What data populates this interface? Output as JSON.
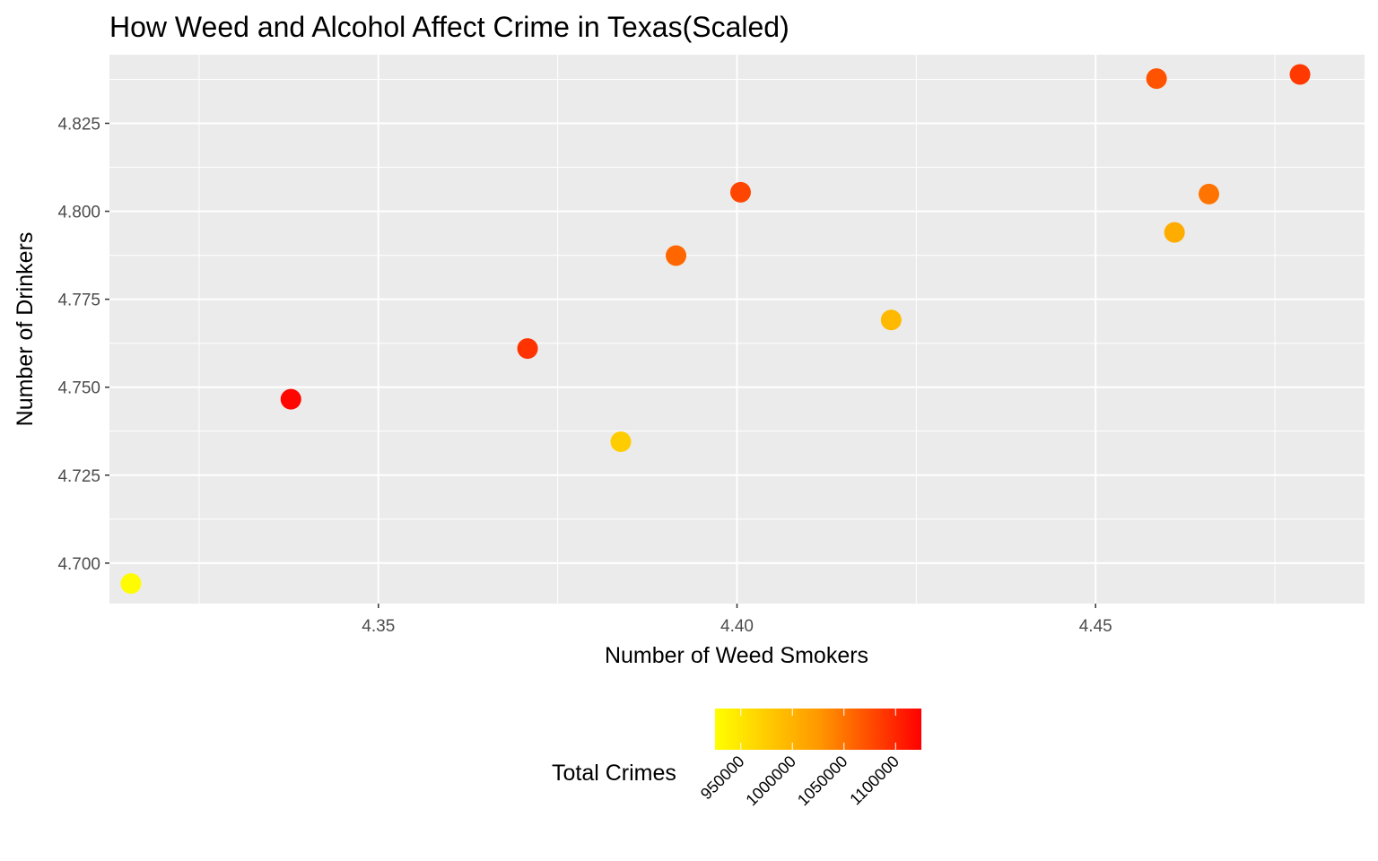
{
  "chart_data": {
    "type": "scatter",
    "title": "How Weed and Alcohol Affect Crime in Texas(Scaled)",
    "xlabel": "Number of Weed Smokers",
    "ylabel": "Number of Drinkers",
    "xlim": [
      4.3125,
      4.4875
    ],
    "ylim": [
      4.6885,
      4.8445
    ],
    "x_ticks": [
      4.35,
      4.4,
      4.45
    ],
    "x_tick_labels": [
      "4.35",
      "4.40",
      "4.45"
    ],
    "y_ticks": [
      4.7,
      4.725,
      4.75,
      4.775,
      4.8,
      4.825
    ],
    "y_tick_labels": [
      "4.700",
      "4.725",
      "4.750",
      "4.775",
      "4.800",
      "4.825"
    ],
    "grid": true,
    "legend_position": "bottom",
    "color_scale": {
      "title": "Total Crimes",
      "low_color": "#FFFF00",
      "high_color": "#FF0000",
      "min": 925000,
      "max": 1125000,
      "ticks": [
        950000,
        1000000,
        1050000,
        1100000
      ],
      "tick_labels": [
        "950000",
        "1000000",
        "1050000",
        "1100000"
      ]
    },
    "points": [
      {
        "x": 4.3155,
        "y": 4.6942,
        "total_crimes": 928000
      },
      {
        "x": 4.3378,
        "y": 4.7466,
        "total_crimes": 1120000
      },
      {
        "x": 4.3708,
        "y": 4.761,
        "total_crimes": 1085000
      },
      {
        "x": 4.3838,
        "y": 4.7345,
        "total_crimes": 965000
      },
      {
        "x": 4.3915,
        "y": 4.7874,
        "total_crimes": 1045000
      },
      {
        "x": 4.4005,
        "y": 4.8054,
        "total_crimes": 1070000
      },
      {
        "x": 4.4215,
        "y": 4.7691,
        "total_crimes": 980000
      },
      {
        "x": 4.4585,
        "y": 4.8377,
        "total_crimes": 1060000
      },
      {
        "x": 4.461,
        "y": 4.794,
        "total_crimes": 990000
      },
      {
        "x": 4.4658,
        "y": 4.8049,
        "total_crimes": 1035000
      },
      {
        "x": 4.4785,
        "y": 4.8389,
        "total_crimes": 1080000
      }
    ]
  }
}
